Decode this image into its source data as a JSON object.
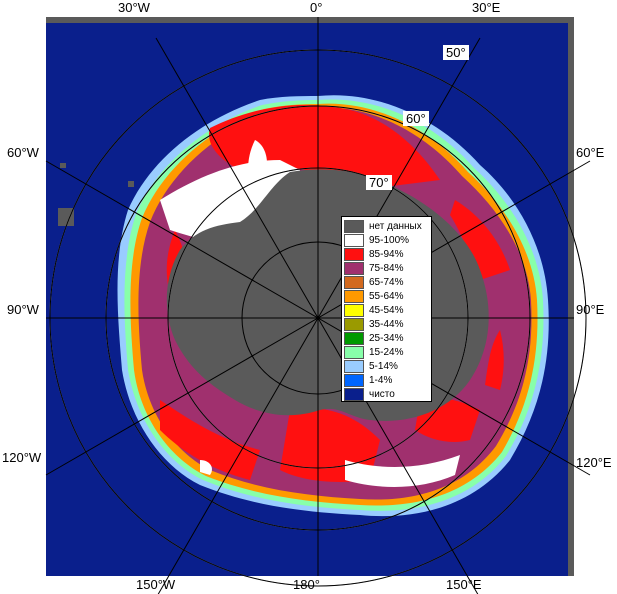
{
  "map": {
    "colors": {
      "ocean": "#0a1f8c",
      "land": "#5a5a5a",
      "frame": "#5a5a5a",
      "grid": "#aaaaaa"
    }
  },
  "lon_labels": {
    "top_left": "30°W",
    "top_center": "0°",
    "top_right": "30°E",
    "left_upper": "60°W",
    "right_upper": "60°E",
    "left_mid": "90°W",
    "right_mid": "90°E",
    "left_lower": "120°W",
    "right_lower": "120°E",
    "bottom_left": "150°W",
    "bottom_center": "180°",
    "bottom_right": "150°E"
  },
  "lat_labels": {
    "lat50": "50°",
    "lat60": "60°",
    "lat70": "70°"
  },
  "legend": [
    {
      "label": "нет данных",
      "color": "#5a5a5a"
    },
    {
      "label": "95-100%",
      "color": "#ffffff"
    },
    {
      "label": "85-94%",
      "color": "#ff1010"
    },
    {
      "label": "75-84%",
      "color": "#a0306e"
    },
    {
      "label": "65-74%",
      "color": "#d2691e"
    },
    {
      "label": "55-64%",
      "color": "#ff9900"
    },
    {
      "label": "45-54%",
      "color": "#ffff00"
    },
    {
      "label": "35-44%",
      "color": "#9a9a00"
    },
    {
      "label": "25-34%",
      "color": "#009900"
    },
    {
      "label": "15-24%",
      "color": "#88ffaa"
    },
    {
      "label": "5-14%",
      "color": "#99ccff"
    },
    {
      "label": "1-4%",
      "color": "#0066ff"
    },
    {
      "label": "чисто",
      "color": "#0a1f8c"
    }
  ]
}
